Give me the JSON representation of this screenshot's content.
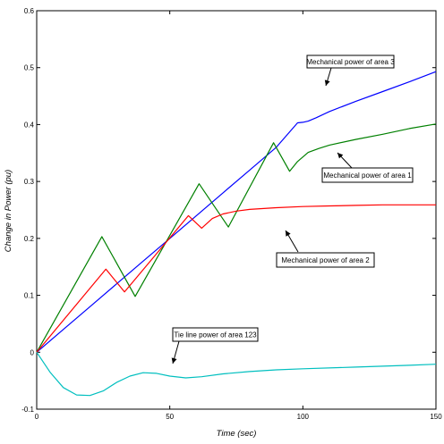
{
  "chart_data": {
    "type": "line",
    "title": "",
    "xlabel": "Time (sec)",
    "ylabel": "Change in Power (pu)",
    "xlim": [
      0,
      150
    ],
    "ylim": [
      -0.1,
      0.6
    ],
    "xticks": [
      0,
      50,
      100,
      150
    ],
    "yticks": [
      -0.1,
      0,
      0.1,
      0.2,
      0.3,
      0.4,
      0.5,
      0.6
    ],
    "grid": false,
    "legend": "none",
    "series": [
      {
        "name": "Mechanical power of area 3",
        "color": "#0000ff",
        "x": [
          0,
          10,
          20,
          30,
          40,
          50,
          60,
          70,
          80,
          90,
          98,
          100,
          102,
          105,
          110,
          120,
          130,
          140,
          150
        ],
        "y": [
          0,
          0.04,
          0.08,
          0.12,
          0.16,
          0.2,
          0.24,
          0.28,
          0.32,
          0.36,
          0.403,
          0.404,
          0.406,
          0.412,
          0.423,
          0.441,
          0.458,
          0.475,
          0.493
        ]
      },
      {
        "name": "Mechanical power of area 1",
        "color": "#008000",
        "x": [
          0,
          24.5,
          37,
          61,
          72,
          89,
          95,
          98,
          102,
          106,
          110,
          120,
          130,
          140,
          150
        ],
        "y": [
          0,
          0.203,
          0.098,
          0.296,
          0.22,
          0.368,
          0.318,
          0.335,
          0.351,
          0.358,
          0.364,
          0.374,
          0.383,
          0.393,
          0.401
        ]
      },
      {
        "name": "Mechanical power of area 2",
        "color": "#ff0000",
        "x": [
          0,
          26,
          33,
          57,
          62,
          66,
          70,
          75,
          80,
          90,
          100,
          110,
          120,
          130,
          150
        ],
        "y": [
          0,
          0.146,
          0.106,
          0.24,
          0.218,
          0.235,
          0.243,
          0.248,
          0.251,
          0.254,
          0.256,
          0.257,
          0.258,
          0.259,
          0.259
        ]
      },
      {
        "name": "Tie line power of area 123",
        "color": "#00bfbf",
        "x": [
          0,
          5,
          10,
          15,
          20,
          25,
          30,
          35,
          40,
          45,
          50,
          56,
          62,
          70,
          80,
          90,
          100,
          120,
          140,
          150
        ],
        "y": [
          0,
          -0.035,
          -0.062,
          -0.075,
          -0.076,
          -0.068,
          -0.053,
          -0.042,
          -0.036,
          -0.037,
          -0.042,
          -0.045,
          -0.043,
          -0.038,
          -0.034,
          -0.031,
          -0.029,
          -0.026,
          -0.023,
          -0.021
        ]
      }
    ],
    "annotations": [
      {
        "text": "Mechanical power of area 3"
      },
      {
        "text": "Mechanical power of area 1"
      },
      {
        "text": "Mechanical power of area 2"
      },
      {
        "text": "Tie line power of area 123"
      }
    ]
  }
}
